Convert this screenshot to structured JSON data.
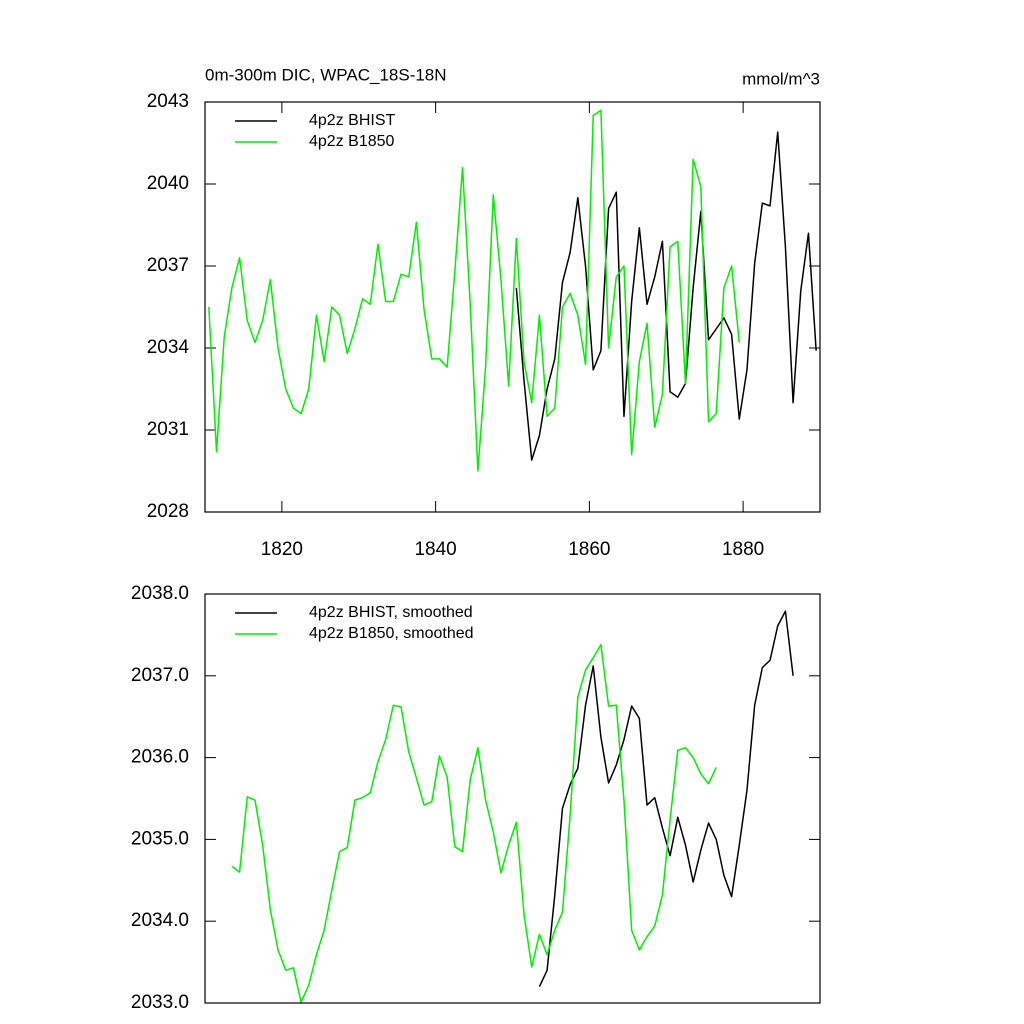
{
  "chart_data": [
    {
      "type": "line",
      "title": "0m-300m DIC, WPAC_18S-18N",
      "units_label": "mmol/m^3",
      "xlim": [
        1810,
        1890
      ],
      "xticks": [
        1820,
        1840,
        1860,
        1880
      ],
      "ylim": [
        2028,
        2043
      ],
      "yticks": [
        2028,
        2031,
        2034,
        2037,
        2040,
        2043
      ],
      "legend": "upper left",
      "series": [
        {
          "name": "4p2z BHIST",
          "color": "#000000",
          "x": [
            1850.5,
            1851.5,
            1852.5,
            1853.5,
            1854.5,
            1855.5,
            1856.5,
            1857.5,
            1858.5,
            1859.5,
            1860.5,
            1861.5,
            1862.5,
            1863.5,
            1864.5,
            1865.5,
            1866.5,
            1867.5,
            1868.5,
            1869.5,
            1870.5,
            1871.5,
            1872.5,
            1873.5,
            1874.5,
            1875.5,
            1876.5,
            1877.5,
            1878.5,
            1879.5,
            1880.5,
            1881.5,
            1882.5,
            1883.5,
            1884.5,
            1885.5,
            1886.5,
            1887.5,
            1888.5,
            1889.5
          ],
          "values": [
            2036.2,
            2032.8,
            2029.9,
            2030.8,
            2032.5,
            2033.6,
            2036.4,
            2037.5,
            2039.5,
            2037.0,
            2033.2,
            2033.9,
            2039.1,
            2039.7,
            2031.5,
            2035.7,
            2038.4,
            2035.6,
            2036.6,
            2037.9,
            2032.4,
            2032.2,
            2032.7,
            2036.2,
            2039.0,
            2034.3,
            2034.7,
            2035.1,
            2034.5,
            2031.4,
            2033.2,
            2037.1,
            2039.3,
            2039.2,
            2041.9,
            2037.7,
            2032.0,
            2036.1,
            2038.2,
            2033.9
          ]
        },
        {
          "name": "4p2z B1850",
          "color": "#00ee00",
          "x": [
            1810.5,
            1811.5,
            1812.5,
            1813.5,
            1814.5,
            1815.5,
            1816.5,
            1817.5,
            1818.5,
            1819.5,
            1820.5,
            1821.5,
            1822.5,
            1823.5,
            1824.5,
            1825.5,
            1826.5,
            1827.5,
            1828.5,
            1829.5,
            1830.5,
            1831.5,
            1832.5,
            1833.5,
            1834.5,
            1835.5,
            1836.5,
            1837.5,
            1838.5,
            1839.5,
            1840.5,
            1841.5,
            1842.5,
            1843.5,
            1844.5,
            1845.5,
            1846.5,
            1847.5,
            1848.5,
            1849.5,
            1850.5,
            1851.5,
            1852.5,
            1853.5,
            1854.5,
            1855.5,
            1856.5,
            1857.5,
            1858.5,
            1859.5,
            1860.5,
            1861.5,
            1862.5,
            1863.5,
            1864.5,
            1865.5,
            1866.5,
            1867.5,
            1868.5,
            1869.5,
            1870.5,
            1871.5,
            1872.5,
            1873.5,
            1874.5,
            1875.5,
            1876.5,
            1877.5,
            1878.5,
            1879.5
          ],
          "values": [
            2035.5,
            2030.2,
            2034.4,
            2036.2,
            2037.3,
            2035.0,
            2034.2,
            2035.0,
            2036.5,
            2034.0,
            2032.5,
            2031.8,
            2031.6,
            2032.5,
            2035.2,
            2033.5,
            2035.5,
            2035.2,
            2033.8,
            2034.7,
            2035.8,
            2035.6,
            2037.8,
            2035.7,
            2035.7,
            2036.7,
            2036.6,
            2038.6,
            2035.4,
            2033.6,
            2033.6,
            2033.3,
            2036.8,
            2040.6,
            2035.6,
            2029.5,
            2033.3,
            2039.6,
            2036.5,
            2032.6,
            2038.0,
            2033.5,
            2032.0,
            2035.2,
            2031.5,
            2031.8,
            2035.5,
            2036.0,
            2035.2,
            2033.4,
            2042.5,
            2042.7,
            2034.0,
            2036.6,
            2037.0,
            2030.1,
            2033.5,
            2034.9,
            2031.1,
            2032.3,
            2037.7,
            2037.9,
            2032.7,
            2040.9,
            2039.9,
            2031.3,
            2031.6,
            2036.2,
            2037.0,
            2034.2
          ]
        }
      ]
    },
    {
      "type": "line",
      "xlim": [
        1810,
        1890
      ],
      "ylim": [
        2033,
        2038
      ],
      "yticks": [
        {
          "value": 2033,
          "label": "2033.0"
        },
        {
          "value": 2034,
          "label": "2034.0"
        },
        {
          "value": 2035,
          "label": "2035.0"
        },
        {
          "value": 2036,
          "label": "2036.0"
        },
        {
          "value": 2037,
          "label": "2037.0"
        },
        {
          "value": 2038,
          "label": "2038.0"
        }
      ],
      "legend": "upper left",
      "series": [
        {
          "name": "4p2z BHIST, smoothed",
          "color": "#000000",
          "x": [
            1853.5,
            1854.5,
            1855.5,
            1856.5,
            1857.5,
            1858.5,
            1859.5,
            1860.5,
            1861.5,
            1862.5,
            1863.5,
            1864.5,
            1865.5,
            1866.5,
            1867.5,
            1868.5,
            1869.5,
            1870.5,
            1871.5,
            1872.5,
            1873.5,
            1874.5,
            1875.5,
            1876.5,
            1877.5,
            1878.5,
            1879.5,
            1880.5,
            1881.5,
            1882.5,
            1883.5,
            1884.5,
            1885.5,
            1886.5
          ],
          "values": [
            2033.2,
            2033.4,
            2034.32,
            2035.38,
            2035.67,
            2035.87,
            2036.64,
            2037.12,
            2036.25,
            2035.69,
            2035.91,
            2036.22,
            2036.63,
            2036.48,
            2035.42,
            2035.51,
            2035.14,
            2034.8,
            2035.27,
            2034.93,
            2034.48,
            2034.87,
            2035.2,
            2035.0,
            2034.56,
            2034.3,
            2034.93,
            2035.6,
            2036.64,
            2037.1,
            2037.19,
            2037.61,
            2037.79,
            2037.0
          ]
        },
        {
          "name": "4p2z B1850, smoothed",
          "color": "#00ee00",
          "x": [
            1813.5,
            1814.5,
            1815.5,
            1816.5,
            1817.5,
            1818.5,
            1819.5,
            1820.5,
            1821.5,
            1822.5,
            1823.5,
            1824.5,
            1825.5,
            1826.5,
            1827.5,
            1828.5,
            1829.5,
            1830.5,
            1831.5,
            1832.5,
            1833.5,
            1834.5,
            1835.5,
            1836.5,
            1837.5,
            1838.5,
            1839.5,
            1840.5,
            1841.5,
            1842.5,
            1843.5,
            1844.5,
            1845.5,
            1846.5,
            1847.5,
            1848.5,
            1849.5,
            1850.5,
            1851.5,
            1852.5,
            1853.5,
            1854.5,
            1855.5,
            1856.5,
            1857.5,
            1858.5,
            1859.5,
            1860.5,
            1861.5,
            1862.5,
            1863.5,
            1864.5,
            1865.5,
            1866.5,
            1867.5,
            1868.5,
            1869.5,
            1870.5,
            1871.5,
            1872.5,
            1873.5,
            1874.5,
            1875.5,
            1876.5
          ],
          "values": [
            2034.67,
            2034.6,
            2035.52,
            2035.48,
            2034.93,
            2034.14,
            2033.65,
            2033.4,
            2033.43,
            2033.01,
            2033.22,
            2033.59,
            2033.89,
            2034.38,
            2034.85,
            2034.9,
            2035.48,
            2035.51,
            2035.57,
            2035.95,
            2036.22,
            2036.64,
            2036.62,
            2036.07,
            2035.75,
            2035.42,
            2035.46,
            2036.02,
            2035.76,
            2034.91,
            2034.85,
            2035.73,
            2036.12,
            2035.48,
            2035.09,
            2034.59,
            2034.93,
            2035.21,
            2034.08,
            2033.44,
            2033.84,
            2033.59,
            2033.89,
            2034.11,
            2035.3,
            2036.74,
            2037.07,
            2037.22,
            2037.38,
            2036.63,
            2036.64,
            2035.48,
            2033.89,
            2033.65,
            2033.81,
            2033.94,
            2034.32,
            2035.24,
            2036.09,
            2036.12,
            2036.0,
            2035.8,
            2035.68,
            2035.88
          ]
        }
      ]
    }
  ]
}
